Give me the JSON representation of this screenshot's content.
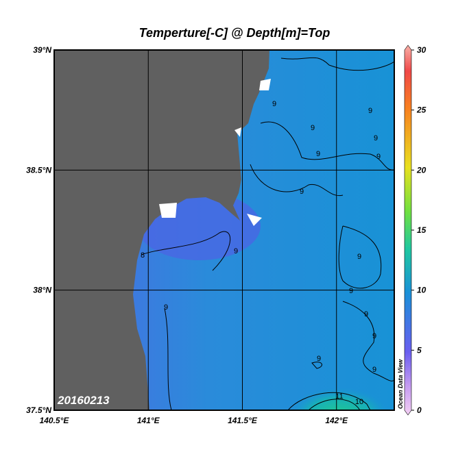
{
  "map": {
    "title": "Temperture[-C] @ Depth[m]=Top",
    "lon_lim": [
      140.5,
      142.3
    ],
    "lat_lim": [
      37.5,
      39
    ],
    "lon_ticks": [
      {
        "value": 140.5,
        "label": "140.5°E"
      },
      {
        "value": 141,
        "label": "141°E"
      },
      {
        "value": 141.5,
        "label": "141.5°E"
      },
      {
        "value": 142,
        "label": "142°E"
      }
    ],
    "lat_ticks": [
      {
        "value": 37.5,
        "label": "37.5°N"
      },
      {
        "value": 38,
        "label": "38°N"
      },
      {
        "value": 38.5,
        "label": "38.5°N"
      },
      {
        "value": 39,
        "label": "39°N"
      }
    ],
    "date_label": "20160213",
    "watermark": "Ocean Data View",
    "contour_labels": [
      8,
      9,
      9,
      9,
      9,
      9,
      9,
      9,
      9,
      9,
      9,
      9,
      9,
      9,
      9,
      9,
      10,
      11
    ],
    "colorbar": {
      "lim": [
        0,
        30
      ],
      "ticks": [
        0,
        5,
        10,
        15,
        20,
        25,
        30
      ]
    }
  }
}
